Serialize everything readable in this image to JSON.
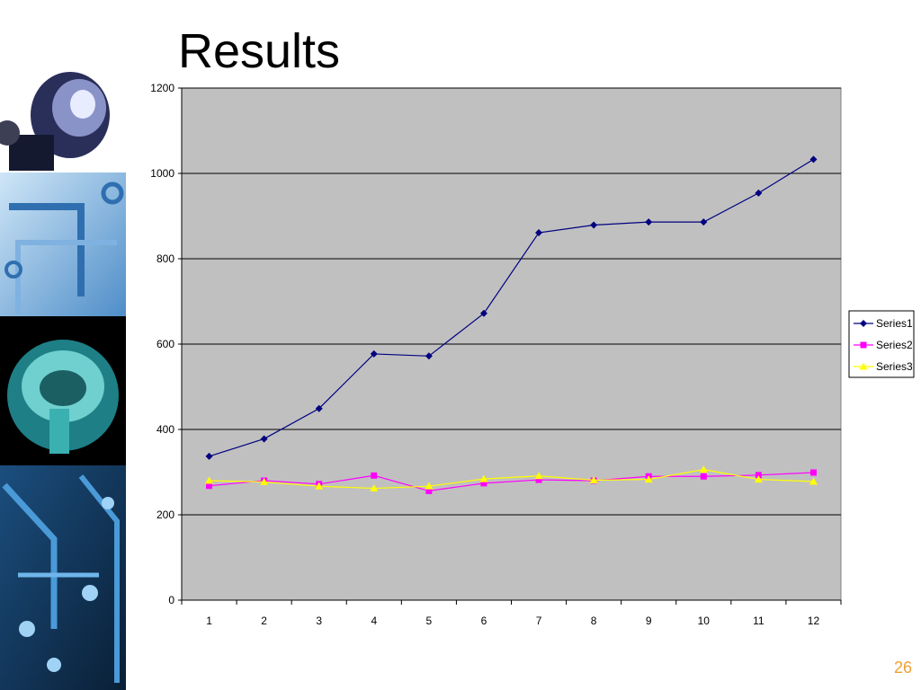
{
  "slide": {
    "title": "Results",
    "page_number": "26"
  },
  "colors": {
    "background": "#ffffff",
    "plot_area": "#c0c0c0",
    "page_number": "#f0a030"
  },
  "chart_data": {
    "type": "line",
    "title": "",
    "xlabel": "",
    "ylabel": "",
    "categories": [
      "1",
      "2",
      "3",
      "4",
      "5",
      "6",
      "7",
      "8",
      "9",
      "10",
      "11",
      "12"
    ],
    "ylim": [
      0,
      1200
    ],
    "yticks": [
      0,
      200,
      400,
      600,
      800,
      1000,
      1200
    ],
    "grid": true,
    "legend": "right",
    "series": [
      {
        "name": "Series1",
        "color": "#000080",
        "marker": "diamond",
        "values": [
          337,
          378,
          449,
          577,
          572,
          672,
          861,
          879,
          886,
          886,
          954,
          1033
        ]
      },
      {
        "name": "Series2",
        "color": "#ff00ff",
        "marker": "square",
        "values": [
          268,
          280,
          272,
          292,
          256,
          274,
          282,
          280,
          290,
          290,
          293,
          299
        ]
      },
      {
        "name": "Series3",
        "color": "#ffff00",
        "marker": "triangle",
        "values": [
          280,
          277,
          267,
          262,
          267,
          284,
          291,
          281,
          283,
          306,
          283,
          278
        ]
      }
    ]
  }
}
